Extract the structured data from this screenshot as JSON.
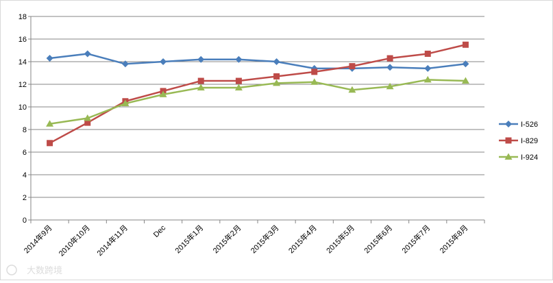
{
  "chart_data": {
    "type": "line",
    "title": "",
    "xlabel": "",
    "ylabel": "",
    "categories": [
      "2014年9月",
      "2010年10月",
      "2014年11月",
      "Dec",
      "2015年1月",
      "2015年2月",
      "2015年3月",
      "2015年4月",
      "2015年5月",
      "2015年6月",
      "2015年7月",
      "2015年8月"
    ],
    "y_ticks": [
      "0",
      "2",
      "4",
      "6",
      "8",
      "10",
      "12",
      "14",
      "16",
      "18"
    ],
    "ylim": [
      0,
      18
    ],
    "grid": "horizontal",
    "legend_position": "right",
    "series": [
      {
        "name": "I-526",
        "color": "#4a7ebb",
        "marker": "diamond",
        "values": [
          14.3,
          14.7,
          13.8,
          14.0,
          14.2,
          14.2,
          14.0,
          13.4,
          13.4,
          13.5,
          13.4,
          13.8
        ]
      },
      {
        "name": "I-829",
        "color": "#be4b48",
        "marker": "square",
        "values": [
          6.8,
          8.6,
          10.5,
          11.4,
          12.3,
          12.3,
          12.7,
          13.1,
          13.6,
          14.3,
          14.7,
          15.5
        ]
      },
      {
        "name": "I-924",
        "color": "#98b954",
        "marker": "triangle",
        "values": [
          8.5,
          9.0,
          10.3,
          11.1,
          11.7,
          11.7,
          12.1,
          12.2,
          11.5,
          11.8,
          12.4,
          12.3
        ]
      }
    ]
  },
  "watermark": {
    "text": "大数跨境"
  }
}
